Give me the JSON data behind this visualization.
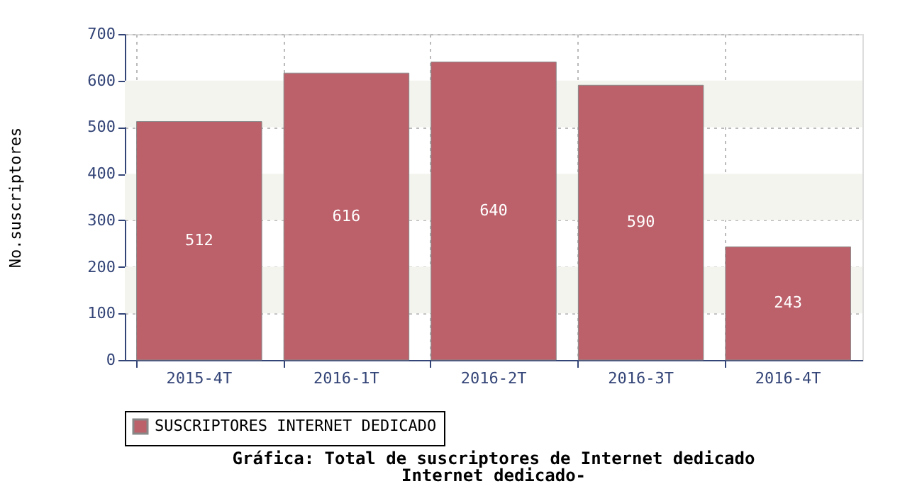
{
  "chart_data": {
    "type": "bar",
    "title": "Gráfica: Total de suscriptores de Internet dedicado",
    "subtitle": "Internet dedicado-",
    "ylabel": "No.suscriptores",
    "categories": [
      "2015-4T",
      "2016-1T",
      "2016-2T",
      "2016-3T",
      "2016-4T"
    ],
    "series": [
      {
        "name": "SUSCRIPTORES INTERNET DEDICADO",
        "color": "#bc606a",
        "values": [
          512,
          616,
          640,
          590,
          243
        ]
      }
    ],
    "ylim": [
      0,
      700
    ],
    "yticks": [
      0,
      100,
      200,
      300,
      400,
      500,
      600,
      700
    ],
    "bands": [
      {
        "axis": "y",
        "from": 100,
        "to": 200,
        "color": "#f4f4ee"
      },
      {
        "axis": "y",
        "from": 300,
        "to": 400,
        "color": "#f4f4ee"
      },
      {
        "axis": "y",
        "from": 500,
        "to": 600,
        "color": "#f4f4ee"
      }
    ],
    "grid": true,
    "legend": "bottom",
    "data_labels": true
  }
}
